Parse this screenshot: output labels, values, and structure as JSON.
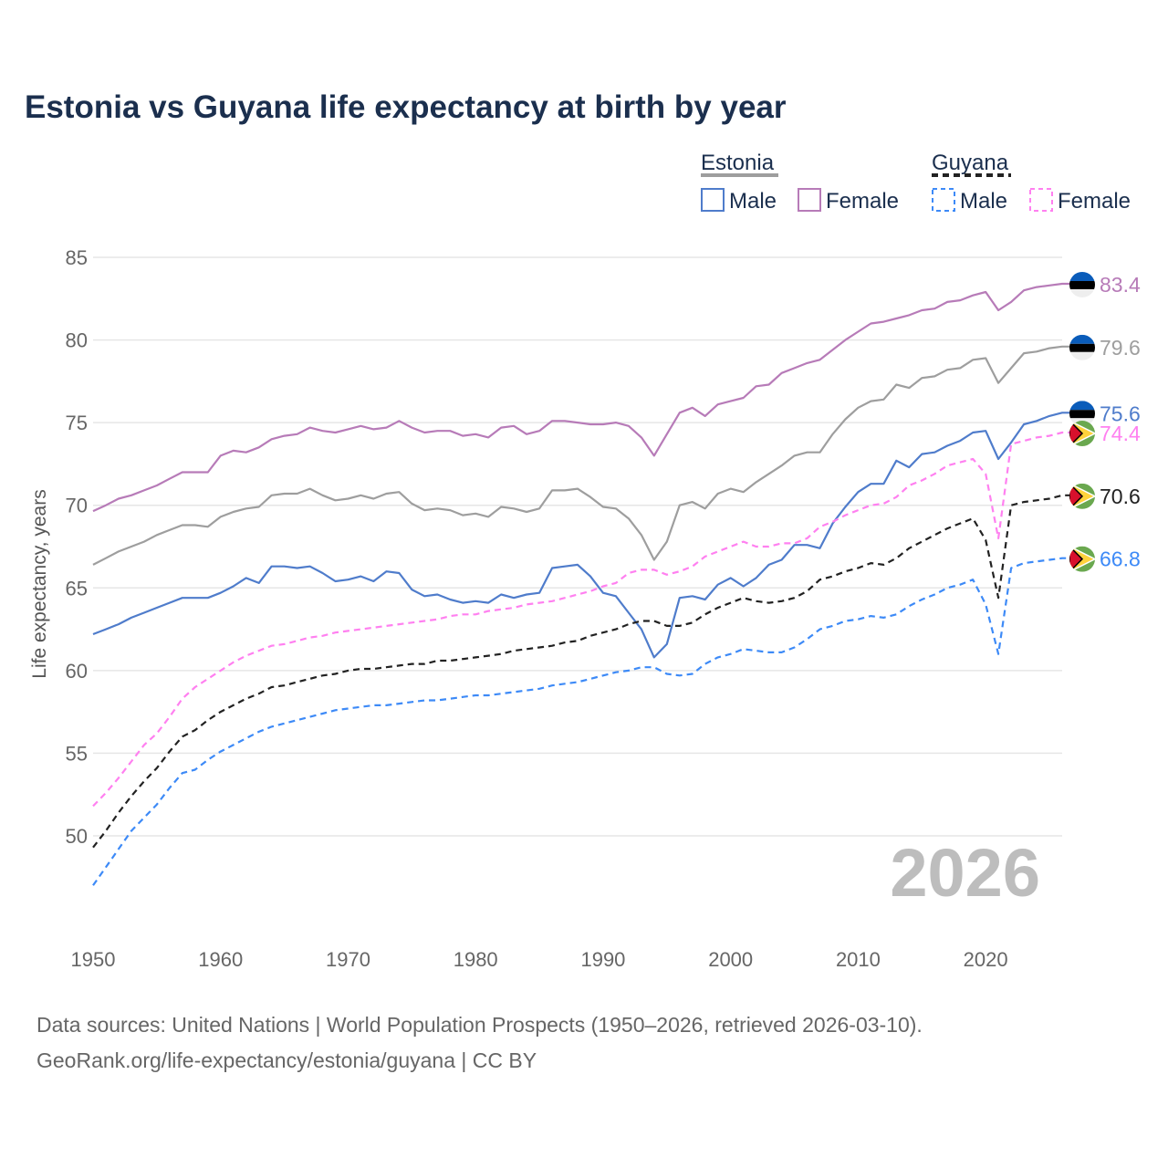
{
  "chart_data": {
    "type": "line",
    "title": "Estonia vs Guyana life expectancy at birth by year",
    "ylabel": "Life expectancy, years",
    "xlabel": "",
    "xlim": [
      1950,
      2026
    ],
    "ylim": [
      45.5,
      86
    ],
    "xticks": [
      1950,
      1960,
      1970,
      1980,
      1990,
      2000,
      2010,
      2020
    ],
    "yticks": [
      50,
      55,
      60,
      65,
      70,
      75,
      80,
      85
    ],
    "grid": true,
    "legend_position": "top-right",
    "legend": {
      "groups": [
        {
          "name": "Estonia",
          "items": [
            "Male",
            "Female"
          ]
        },
        {
          "name": "Guyana",
          "items": [
            "Male",
            "Female"
          ]
        }
      ]
    },
    "year_watermark": "2026",
    "x_start": 1950,
    "series": [
      {
        "name": "Estonia Female",
        "country": "Estonia",
        "color": "#b77bb8",
        "dashed": false,
        "end_label": "83.4",
        "values": [
          69.65,
          70.0,
          70.4,
          70.6,
          70.9,
          71.2,
          71.6,
          72.0,
          72.0,
          72.0,
          73.0,
          73.3,
          73.2,
          73.5,
          74.0,
          74.2,
          74.3,
          74.7,
          74.5,
          74.4,
          74.6,
          74.8,
          74.6,
          74.7,
          75.1,
          74.7,
          74.4,
          74.5,
          74.5,
          74.2,
          74.3,
          74.1,
          74.7,
          74.8,
          74.3,
          74.5,
          75.1,
          75.1,
          75.0,
          74.9,
          74.9,
          75.0,
          74.8,
          74.1,
          73.0,
          74.3,
          75.6,
          75.9,
          75.4,
          76.1,
          76.3,
          76.5,
          77.2,
          77.3,
          78.0,
          78.3,
          78.6,
          78.8,
          79.4,
          80.0,
          80.5,
          81.0,
          81.1,
          81.3,
          81.5,
          81.8,
          81.9,
          82.3,
          82.4,
          82.7,
          82.9,
          81.8,
          82.3,
          83.0,
          83.2,
          83.3,
          83.4
        ]
      },
      {
        "name": "Estonia Total",
        "country": "Estonia",
        "color": "#9e9e9e",
        "dashed": false,
        "end_label": "79.6",
        "values": [
          66.4,
          66.8,
          67.2,
          67.5,
          67.8,
          68.2,
          68.5,
          68.8,
          68.8,
          68.7,
          69.3,
          69.6,
          69.8,
          69.9,
          70.6,
          70.7,
          70.7,
          71.0,
          70.6,
          70.3,
          70.4,
          70.6,
          70.4,
          70.7,
          70.8,
          70.1,
          69.7,
          69.8,
          69.7,
          69.4,
          69.5,
          69.3,
          69.9,
          69.8,
          69.6,
          69.8,
          70.9,
          70.9,
          71.0,
          70.5,
          69.9,
          69.8,
          69.2,
          68.2,
          66.7,
          67.8,
          70.0,
          70.2,
          69.8,
          70.7,
          71.0,
          70.8,
          71.4,
          71.9,
          72.4,
          73.0,
          73.2,
          73.2,
          74.3,
          75.2,
          75.9,
          76.3,
          76.4,
          77.3,
          77.1,
          77.7,
          77.8,
          78.2,
          78.3,
          78.8,
          78.9,
          77.4,
          78.3,
          79.2,
          79.3,
          79.5,
          79.6
        ]
      },
      {
        "name": "Estonia Male",
        "country": "Estonia",
        "color": "#4f7ccb",
        "dashed": false,
        "end_label": "75.6",
        "values": [
          62.2,
          62.5,
          62.8,
          63.2,
          63.5,
          63.8,
          64.1,
          64.4,
          64.4,
          64.4,
          64.7,
          65.1,
          65.6,
          65.3,
          66.3,
          66.3,
          66.2,
          66.3,
          65.9,
          65.4,
          65.5,
          65.7,
          65.4,
          66.0,
          65.9,
          64.9,
          64.5,
          64.6,
          64.3,
          64.1,
          64.2,
          64.1,
          64.6,
          64.4,
          64.6,
          64.7,
          66.2,
          66.3,
          66.4,
          65.7,
          64.7,
          64.5,
          63.5,
          62.5,
          60.8,
          61.6,
          64.4,
          64.5,
          64.3,
          65.2,
          65.6,
          65.1,
          65.6,
          66.4,
          66.7,
          67.6,
          67.6,
          67.4,
          68.9,
          69.9,
          70.8,
          71.3,
          71.3,
          72.7,
          72.3,
          73.1,
          73.2,
          73.6,
          73.9,
          74.4,
          74.5,
          72.8,
          73.8,
          74.9,
          75.1,
          75.4,
          75.6
        ]
      },
      {
        "name": "Guyana Female",
        "country": "Guyana",
        "color": "#ff80f0",
        "dashed": true,
        "end_label": "74.4",
        "values": [
          51.8,
          52.6,
          53.5,
          54.5,
          55.5,
          56.2,
          57.2,
          58.3,
          59.0,
          59.5,
          60.0,
          60.5,
          60.9,
          61.2,
          61.5,
          61.6,
          61.8,
          62.0,
          62.1,
          62.3,
          62.4,
          62.5,
          62.6,
          62.7,
          62.8,
          62.9,
          63.0,
          63.1,
          63.3,
          63.4,
          63.4,
          63.6,
          63.7,
          63.8,
          64.0,
          64.1,
          64.2,
          64.4,
          64.6,
          64.8,
          65.1,
          65.3,
          65.9,
          66.1,
          66.1,
          65.8,
          66.0,
          66.3,
          66.9,
          67.2,
          67.5,
          67.8,
          67.5,
          67.5,
          67.7,
          67.7,
          68.0,
          68.7,
          69.0,
          69.4,
          69.7,
          70.0,
          70.1,
          70.5,
          71.2,
          71.5,
          71.9,
          72.4,
          72.6,
          72.8,
          71.9,
          68.0,
          73.7,
          73.9,
          74.1,
          74.2,
          74.4
        ]
      },
      {
        "name": "Guyana Total",
        "country": "Guyana",
        "color": "#222222",
        "dashed": true,
        "end_label": "70.6",
        "values": [
          49.3,
          50.3,
          51.4,
          52.4,
          53.3,
          54.1,
          55.1,
          56.0,
          56.4,
          57.0,
          57.5,
          57.9,
          58.3,
          58.6,
          59.0,
          59.1,
          59.3,
          59.5,
          59.7,
          59.8,
          60.0,
          60.1,
          60.1,
          60.2,
          60.3,
          60.4,
          60.4,
          60.6,
          60.6,
          60.7,
          60.8,
          60.9,
          61.0,
          61.2,
          61.3,
          61.4,
          61.5,
          61.7,
          61.8,
          62.1,
          62.3,
          62.5,
          62.8,
          63.0,
          63.0,
          62.7,
          62.7,
          62.9,
          63.4,
          63.8,
          64.1,
          64.4,
          64.2,
          64.1,
          64.2,
          64.4,
          64.8,
          65.5,
          65.7,
          66.0,
          66.2,
          66.5,
          66.4,
          66.8,
          67.4,
          67.8,
          68.2,
          68.6,
          68.9,
          69.2,
          67.9,
          64.4,
          70.0,
          70.2,
          70.3,
          70.4,
          70.6
        ]
      },
      {
        "name": "Guyana Male",
        "country": "Guyana",
        "color": "#3d8af7",
        "dashed": true,
        "end_label": "66.8",
        "values": [
          47.0,
          48.1,
          49.2,
          50.3,
          51.1,
          51.9,
          52.9,
          53.8,
          54.0,
          54.6,
          55.1,
          55.5,
          55.9,
          56.3,
          56.6,
          56.8,
          57.0,
          57.2,
          57.4,
          57.6,
          57.7,
          57.8,
          57.9,
          57.9,
          58.0,
          58.1,
          58.2,
          58.2,
          58.3,
          58.4,
          58.5,
          58.5,
          58.6,
          58.7,
          58.8,
          58.9,
          59.1,
          59.2,
          59.3,
          59.5,
          59.7,
          59.9,
          60.0,
          60.2,
          60.2,
          59.8,
          59.7,
          59.8,
          60.4,
          60.8,
          61.0,
          61.3,
          61.2,
          61.1,
          61.1,
          61.4,
          61.9,
          62.5,
          62.7,
          63.0,
          63.1,
          63.3,
          63.2,
          63.4,
          63.9,
          64.3,
          64.6,
          65.0,
          65.2,
          65.5,
          64.0,
          61.0,
          66.2,
          66.5,
          66.6,
          66.7,
          66.8
        ]
      }
    ]
  },
  "legend_labels": {
    "estonia": "Estonia",
    "guyana": "Guyana",
    "male": "Male",
    "female": "Female"
  },
  "source": {
    "line1": "Data sources: United Nations | World Population Prospects (1950–2026, retrieved 2026-03-10).",
    "line2": "GeoRank.org/life-expectancy/estonia/guyana | CC BY"
  }
}
